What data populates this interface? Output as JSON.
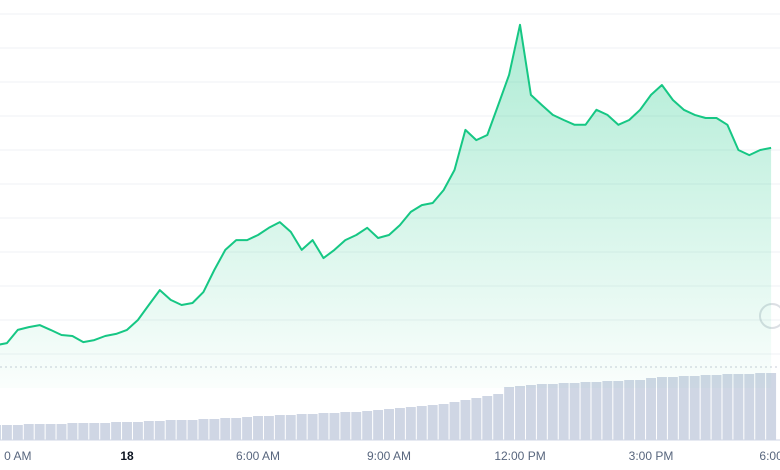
{
  "chart_data": {
    "type": "area",
    "categories": [
      null,
      null,
      "0 AM",
      null,
      null,
      null,
      null,
      null,
      null,
      null,
      null,
      null,
      "18",
      null,
      null,
      null,
      null,
      null,
      null,
      null,
      null,
      null,
      null,
      null,
      "6:00 AM",
      null,
      null,
      null,
      null,
      null,
      null,
      null,
      null,
      null,
      null,
      null,
      "9:00 AM",
      null,
      null,
      null,
      null,
      null,
      null,
      null,
      null,
      null,
      null,
      null,
      "12:00 PM",
      null,
      null,
      null,
      null,
      null,
      null,
      null,
      null,
      null,
      null,
      null,
      "3:00 PM",
      null,
      null,
      null,
      null,
      null,
      null,
      null,
      null,
      null,
      null,
      "6:00"
    ],
    "series": [
      {
        "color": "#16c784",
        "values": [
          1.26,
          1.32,
          1.71,
          1.79,
          1.85,
          1.71,
          1.56,
          1.53,
          1.35,
          1.41,
          1.53,
          1.59,
          1.71,
          2.0,
          2.44,
          2.88,
          2.59,
          2.44,
          2.5,
          2.82,
          3.47,
          4.06,
          4.35,
          4.35,
          4.5,
          4.71,
          4.88,
          4.59,
          4.06,
          4.35,
          3.82,
          4.06,
          4.35,
          4.5,
          4.71,
          4.41,
          4.5,
          4.79,
          5.18,
          5.38,
          5.44,
          5.82,
          6.41,
          7.59,
          7.29,
          7.44,
          8.32,
          9.21,
          10.68,
          8.62,
          8.32,
          8.03,
          7.88,
          7.74,
          7.74,
          8.18,
          8.03,
          7.74,
          7.88,
          8.18,
          8.62,
          8.91,
          8.47,
          8.18,
          8.03,
          7.94,
          7.94,
          7.74,
          7.0,
          6.85,
          7.0,
          7.06
        ]
      },
      {
        "type": "bar",
        "axis": "y2",
        "color": "#cfd6e4",
        "values": [
          15,
          15,
          15,
          16,
          16,
          16,
          16,
          17,
          17,
          17,
          17,
          18,
          18,
          18,
          19,
          19,
          20,
          20,
          20,
          21,
          21,
          22,
          22,
          23,
          24,
          24,
          25,
          25,
          26,
          26,
          27,
          27,
          28,
          28,
          29,
          30,
          31,
          32,
          33,
          34,
          35,
          36,
          38,
          40,
          42,
          44,
          46,
          53,
          54,
          55,
          56,
          56,
          57,
          57,
          58,
          58,
          59,
          59,
          60,
          60,
          62,
          63,
          63,
          64,
          64,
          65,
          65,
          66,
          66,
          66,
          67,
          67
        ]
      }
    ],
    "ylim": [
      0,
      11.41
    ],
    "yticks": [
      1,
      2,
      3,
      4,
      5,
      6,
      7,
      8,
      9,
      10,
      11
    ],
    "y2lim": [
      0,
      68
    ],
    "grid": true
  }
}
